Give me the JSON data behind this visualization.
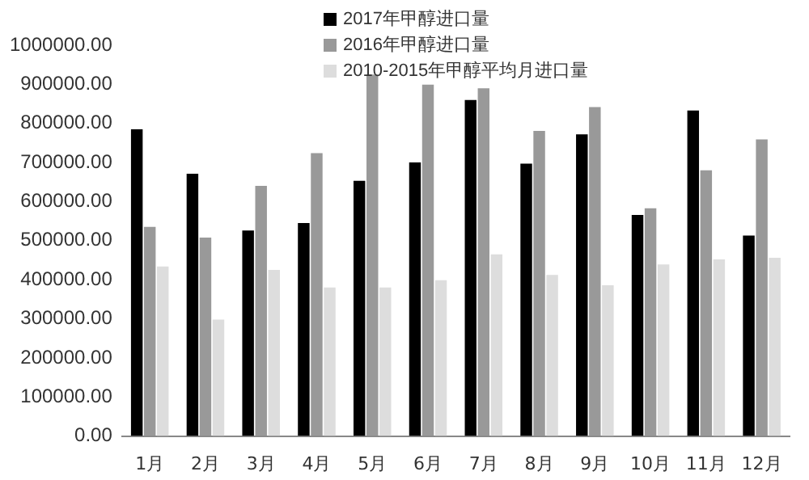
{
  "chart_data": {
    "type": "bar",
    "categories": [
      "1月",
      "2月",
      "3月",
      "4月",
      "5月",
      "6月",
      "7月",
      "8月",
      "9月",
      "10月",
      "11月",
      "12月"
    ],
    "series": [
      {
        "name": "2017年甲醇进口量",
        "color": "#000000",
        "values": [
          785000,
          671000,
          526000,
          545000,
          653000,
          700000,
          860000,
          697000,
          772000,
          566000,
          833000,
          513000
        ]
      },
      {
        "name": "2016年甲醇进口量",
        "color": "#999999",
        "values": [
          535000,
          508000,
          640000,
          724000,
          925000,
          899000,
          890000,
          781000,
          842000,
          583000,
          680000,
          759000
        ]
      },
      {
        "name": "2010-2015年甲醇平均月进口量",
        "color": "#dddddd",
        "values": [
          434000,
          298000,
          425000,
          380000,
          380000,
          399000,
          465000,
          412000,
          386000,
          439000,
          452000,
          456000
        ]
      }
    ],
    "ylim": [
      0,
      1000000
    ],
    "yticks": [
      {
        "value": 0,
        "label": "0.00"
      },
      {
        "value": 100000,
        "label": "100000.00"
      },
      {
        "value": 200000,
        "label": "200000.00"
      },
      {
        "value": 300000,
        "label": "300000.00"
      },
      {
        "value": 400000,
        "label": "400000.00"
      },
      {
        "value": 500000,
        "label": "500000.00"
      },
      {
        "value": 600000,
        "label": "600000.00"
      },
      {
        "value": 700000,
        "label": "700000.00"
      },
      {
        "value": 800000,
        "label": "800000.00"
      },
      {
        "value": 900000,
        "label": "900000.00"
      },
      {
        "value": 1000000,
        "label": "1000000.00"
      }
    ],
    "grid": false,
    "legend": "top"
  }
}
